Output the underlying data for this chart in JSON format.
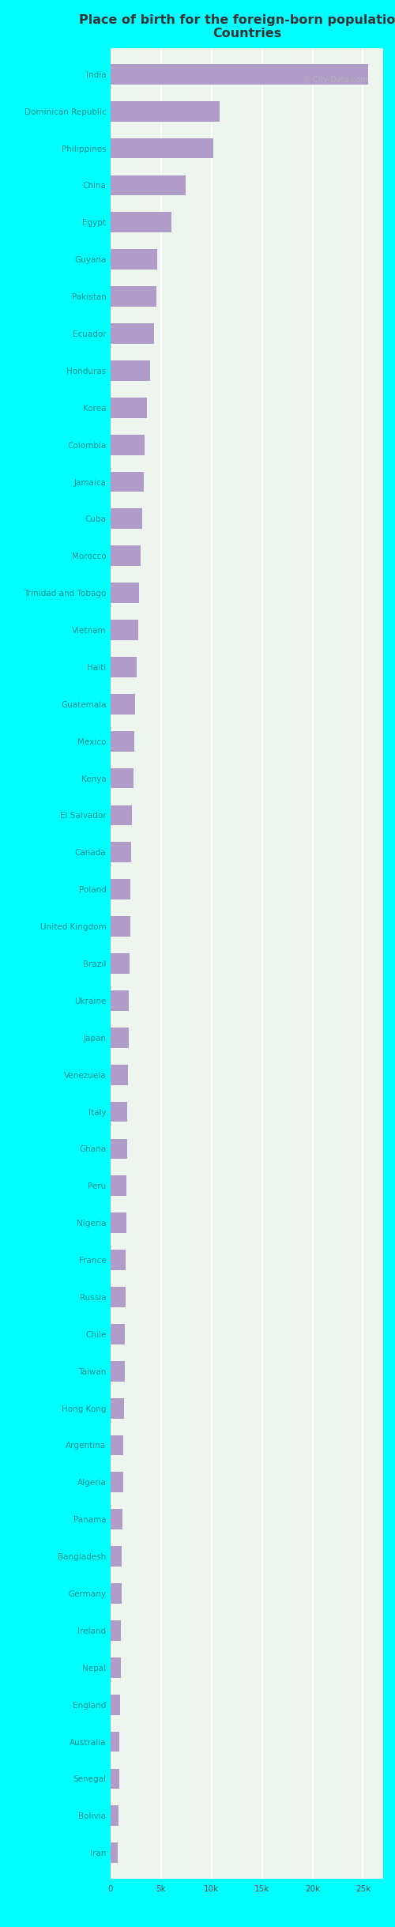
{
  "title": "Place of birth for the foreign-born population -\nCountries",
  "categories": [
    "India",
    "Dominican Republic",
    "Philippines",
    "China",
    "Egypt",
    "Guyana",
    "Pakistan",
    "Ecuador",
    "Honduras",
    "Korea",
    "Colombia",
    "Jamaica",
    "Cuba",
    "Morocco",
    "Trinidad and Tobago",
    "Vietnam",
    "Haiti",
    "Guatemala",
    "Mexico",
    "Kenya",
    "El Salvador",
    "Canada",
    "Poland",
    "United Kingdom",
    "Brazil",
    "Ukraine",
    "Japan",
    "Venezuela",
    "Italy",
    "Ghana",
    "Peru",
    "Nigeria",
    "France",
    "Russia",
    "Chile",
    "Taiwan",
    "Hong Kong",
    "Argentina",
    "Algeria",
    "Panama",
    "Bangladesh",
    "Germany",
    "Ireland",
    "Nepal",
    "England",
    "Australia",
    "Senegal",
    "Bolivia",
    "Iran"
  ],
  "values": [
    25500,
    10800,
    10200,
    7400,
    6000,
    4600,
    4500,
    4300,
    3900,
    3600,
    3400,
    3300,
    3100,
    2950,
    2850,
    2750,
    2600,
    2450,
    2350,
    2250,
    2150,
    2050,
    1980,
    1920,
    1870,
    1820,
    1780,
    1720,
    1670,
    1630,
    1590,
    1550,
    1500,
    1460,
    1420,
    1370,
    1330,
    1280,
    1230,
    1180,
    1130,
    1080,
    1030,
    980,
    930,
    880,
    830,
    780,
    730
  ],
  "bar_color": "#b09cc8",
  "background_color": "#00ffff",
  "plot_bg_left": "#e8f5e8",
  "plot_bg_right": "#f5f0f8",
  "grid_color": "#ffffff",
  "label_color": "#008b8b",
  "title_color": "#333333",
  "xlim": [
    0,
    27000
  ],
  "xtick_labels": [
    "0",
    "5k",
    "10k",
    "15k",
    "20k",
    "25k"
  ],
  "xtick_values": [
    0,
    5000,
    10000,
    15000,
    20000,
    25000
  ],
  "bar_height": 0.55,
  "label_fontsize": 7.5,
  "title_fontsize": 11.5
}
